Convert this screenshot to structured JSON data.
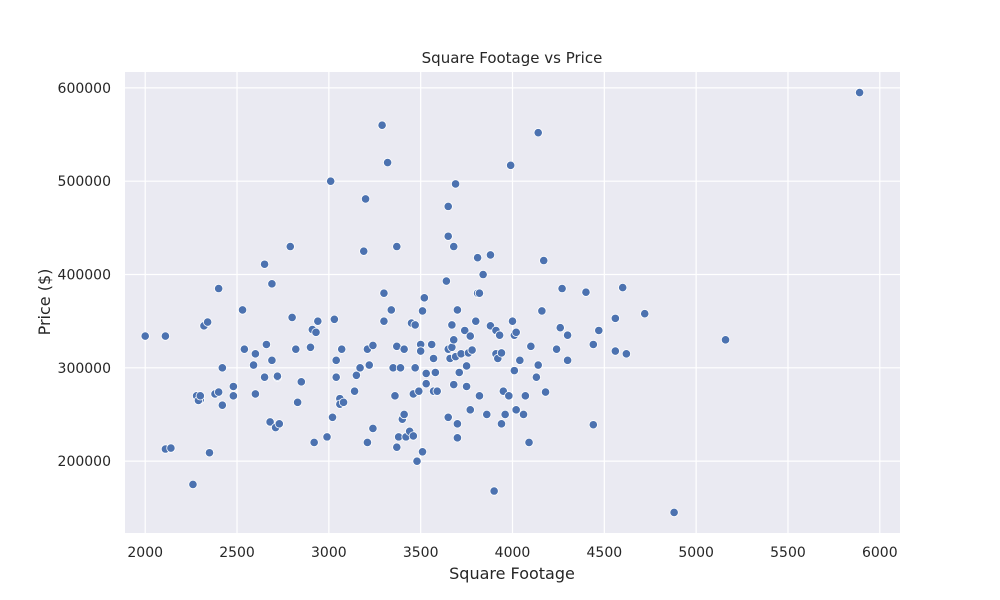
{
  "chart_data": {
    "type": "scatter",
    "title": "Square Footage vs Price",
    "xlabel": "Square Footage",
    "ylabel": "Price ($)",
    "xlim": [
      1890,
      6110
    ],
    "ylim": [
      123000,
      617000
    ],
    "xticks": [
      2000,
      2500,
      3000,
      3500,
      4000,
      4500,
      5000,
      5500,
      6000
    ],
    "yticks": [
      200000,
      300000,
      400000,
      500000,
      600000
    ],
    "grid": true,
    "legend": "none",
    "colors": {
      "point": "#4c72b0",
      "point_edge": "#ffffff",
      "plot_bg": "#eaeaf2",
      "grid": "#ffffff"
    },
    "points": [
      [
        2000,
        334000
      ],
      [
        2110,
        334000
      ],
      [
        2110,
        213000
      ],
      [
        2140,
        214000
      ],
      [
        2260,
        175000
      ],
      [
        2280,
        270000
      ],
      [
        2300,
        266000
      ],
      [
        2290,
        265000
      ],
      [
        2300,
        270000
      ],
      [
        2320,
        345000
      ],
      [
        2340,
        349000
      ],
      [
        2350,
        209000
      ],
      [
        2380,
        272000
      ],
      [
        2400,
        385000
      ],
      [
        2400,
        274000
      ],
      [
        2420,
        260000
      ],
      [
        2420,
        300000
      ],
      [
        2480,
        280000
      ],
      [
        2480,
        270000
      ],
      [
        2530,
        362000
      ],
      [
        2540,
        320000
      ],
      [
        2590,
        303000
      ],
      [
        2600,
        272000
      ],
      [
        2600,
        315000
      ],
      [
        2650,
        411000
      ],
      [
        2650,
        290000
      ],
      [
        2660,
        325000
      ],
      [
        2680,
        242000
      ],
      [
        2690,
        390000
      ],
      [
        2690,
        308000
      ],
      [
        2710,
        236000
      ],
      [
        2720,
        290000
      ],
      [
        2720,
        291000
      ],
      [
        2730,
        240000
      ],
      [
        2790,
        430000
      ],
      [
        2800,
        354000
      ],
      [
        2820,
        320000
      ],
      [
        2830,
        263000
      ],
      [
        2850,
        285000
      ],
      [
        2900,
        322000
      ],
      [
        2910,
        341000
      ],
      [
        2920,
        220000
      ],
      [
        2930,
        338000
      ],
      [
        2940,
        350000
      ],
      [
        2990,
        226000
      ],
      [
        3010,
        500000
      ],
      [
        3020,
        247000
      ],
      [
        3030,
        352000
      ],
      [
        3040,
        290000
      ],
      [
        3040,
        308000
      ],
      [
        3060,
        267000
      ],
      [
        3060,
        261000
      ],
      [
        3070,
        320000
      ],
      [
        3080,
        263000
      ],
      [
        3140,
        275000
      ],
      [
        3150,
        292000
      ],
      [
        3170,
        300000
      ],
      [
        3190,
        425000
      ],
      [
        3200,
        481000
      ],
      [
        3210,
        220000
      ],
      [
        3210,
        320000
      ],
      [
        3220,
        303000
      ],
      [
        3240,
        324000
      ],
      [
        3240,
        235000
      ],
      [
        3290,
        560000
      ],
      [
        3300,
        380000
      ],
      [
        3300,
        350000
      ],
      [
        3320,
        520000
      ],
      [
        3340,
        362000
      ],
      [
        3350,
        300000
      ],
      [
        3360,
        270000
      ],
      [
        3370,
        215000
      ],
      [
        3370,
        430000
      ],
      [
        3370,
        323000
      ],
      [
        3380,
        226000
      ],
      [
        3390,
        300000
      ],
      [
        3400,
        245000
      ],
      [
        3410,
        320000
      ],
      [
        3410,
        250000
      ],
      [
        3420,
        226000
      ],
      [
        3440,
        232000
      ],
      [
        3450,
        348000
      ],
      [
        3460,
        227000
      ],
      [
        3460,
        272000
      ],
      [
        3470,
        346000
      ],
      [
        3470,
        300000
      ],
      [
        3480,
        200000
      ],
      [
        3490,
        275000
      ],
      [
        3500,
        325000
      ],
      [
        3500,
        318000
      ],
      [
        3510,
        210000
      ],
      [
        3510,
        361000
      ],
      [
        3520,
        375000
      ],
      [
        3530,
        294000
      ],
      [
        3530,
        283000
      ],
      [
        3560,
        325000
      ],
      [
        3570,
        275000
      ],
      [
        3570,
        310000
      ],
      [
        3580,
        295000
      ],
      [
        3590,
        275000
      ],
      [
        3640,
        393000
      ],
      [
        3650,
        441000
      ],
      [
        3650,
        473000
      ],
      [
        3650,
        320000
      ],
      [
        3650,
        247000
      ],
      [
        3660,
        310000
      ],
      [
        3670,
        322000
      ],
      [
        3670,
        346000
      ],
      [
        3680,
        430000
      ],
      [
        3680,
        282000
      ],
      [
        3680,
        330000
      ],
      [
        3690,
        497000
      ],
      [
        3690,
        312000
      ],
      [
        3700,
        362000
      ],
      [
        3700,
        225000
      ],
      [
        3700,
        240000
      ],
      [
        3710,
        295000
      ],
      [
        3720,
        315000
      ],
      [
        3740,
        340000
      ],
      [
        3750,
        280000
      ],
      [
        3750,
        302000
      ],
      [
        3760,
        316000
      ],
      [
        3770,
        255000
      ],
      [
        3770,
        334000
      ],
      [
        3780,
        319000
      ],
      [
        3800,
        350000
      ],
      [
        3810,
        418000
      ],
      [
        3810,
        380000
      ],
      [
        3820,
        270000
      ],
      [
        3820,
        380000
      ],
      [
        3840,
        400000
      ],
      [
        3860,
        250000
      ],
      [
        3880,
        421000
      ],
      [
        3880,
        345000
      ],
      [
        3900,
        168000
      ],
      [
        3910,
        340000
      ],
      [
        3910,
        315000
      ],
      [
        3920,
        310000
      ],
      [
        3930,
        335000
      ],
      [
        3940,
        240000
      ],
      [
        3940,
        316000
      ],
      [
        3950,
        275000
      ],
      [
        3960,
        250000
      ],
      [
        3980,
        270000
      ],
      [
        3990,
        517000
      ],
      [
        4000,
        350000
      ],
      [
        4010,
        297000
      ],
      [
        4010,
        335000
      ],
      [
        4020,
        338000
      ],
      [
        4020,
        255000
      ],
      [
        4040,
        308000
      ],
      [
        4060,
        250000
      ],
      [
        4070,
        270000
      ],
      [
        4090,
        220000
      ],
      [
        4100,
        323000
      ],
      [
        4130,
        290000
      ],
      [
        4140,
        552000
      ],
      [
        4140,
        303000
      ],
      [
        4160,
        361000
      ],
      [
        4170,
        415000
      ],
      [
        4180,
        274000
      ],
      [
        4240,
        320000
      ],
      [
        4260,
        343000
      ],
      [
        4270,
        385000
      ],
      [
        4300,
        308000
      ],
      [
        4300,
        335000
      ],
      [
        4400,
        381000
      ],
      [
        4440,
        239000
      ],
      [
        4440,
        325000
      ],
      [
        4470,
        340000
      ],
      [
        4560,
        318000
      ],
      [
        4560,
        353000
      ],
      [
        4600,
        386000
      ],
      [
        4620,
        315000
      ],
      [
        4720,
        358000
      ],
      [
        4880,
        145000
      ],
      [
        5160,
        330000
      ],
      [
        5890,
        595000
      ]
    ]
  }
}
